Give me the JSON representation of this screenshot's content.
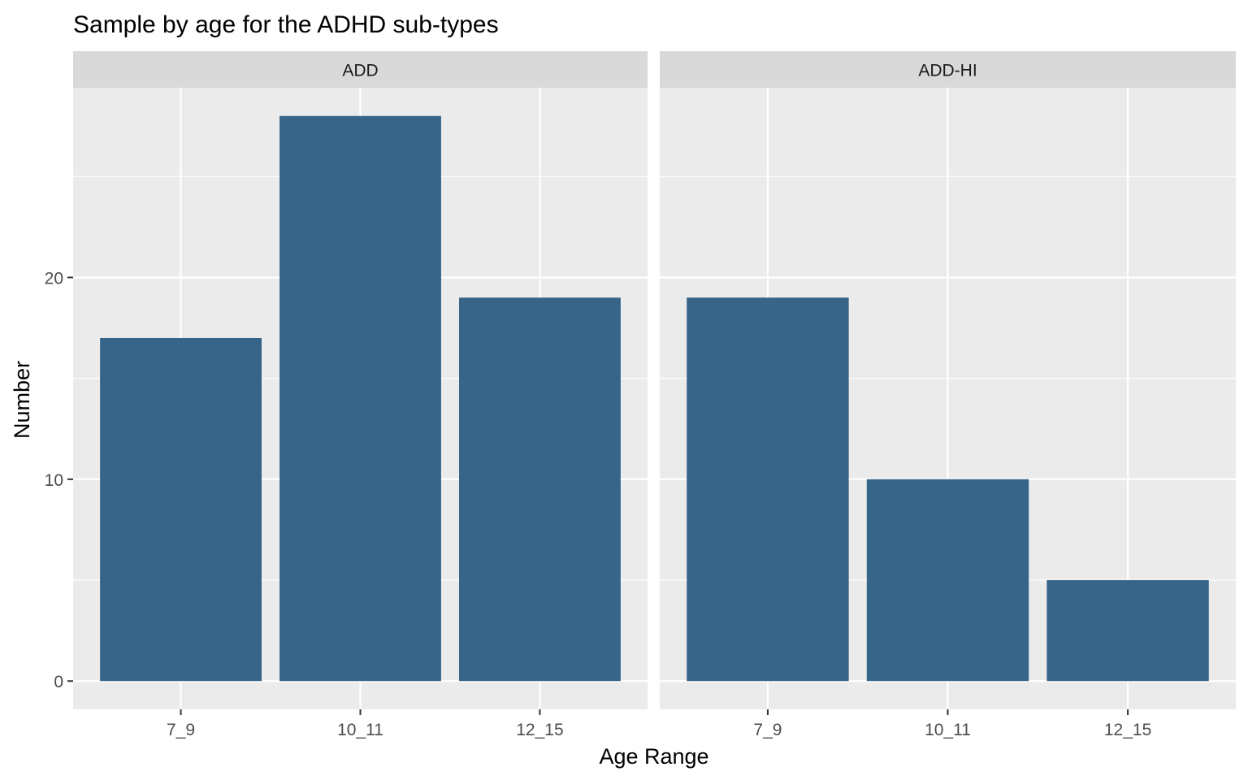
{
  "chart_data": {
    "type": "bar",
    "title": "Sample by age for the ADHD sub-types",
    "xlabel": "Age Range",
    "ylabel": "Number",
    "categories": [
      "7_9",
      "10_11",
      "12_15"
    ],
    "facets": [
      {
        "name": "ADD",
        "values": [
          17,
          28,
          19
        ]
      },
      {
        "name": "ADD-HI",
        "values": [
          19,
          10,
          5
        ]
      }
    ],
    "y_ticks": [
      0,
      10,
      20
    ],
    "ylim": [
      -1.4,
      29.4
    ],
    "grid": true,
    "colors": {
      "bar": "#376489",
      "panel_background": "#ebebeb",
      "strip_background": "#d9d9d9",
      "grid": "#ffffff"
    }
  }
}
